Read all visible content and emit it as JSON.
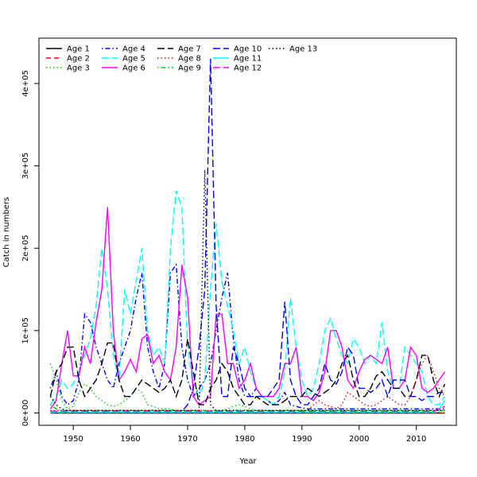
{
  "chart_data": {
    "type": "line",
    "title": "",
    "xlabel": "Year",
    "ylabel": "Catch in numbers",
    "xlim": [
      1944,
      2017
    ],
    "ylim": [
      -15000,
      455000
    ],
    "x_ticks": [
      1950,
      1960,
      1970,
      1980,
      1990,
      2000,
      2010
    ],
    "y_ticks": [
      {
        "value": 0,
        "label": "0e+00"
      },
      {
        "value": 100000,
        "label": "1e+05"
      },
      {
        "value": 200000,
        "label": "2e+05"
      },
      {
        "value": 300000,
        "label": "3e+05"
      },
      {
        "value": 400000,
        "label": "4e+05"
      }
    ],
    "grid": false,
    "legend_position": "top-left",
    "x": [
      1946,
      1947,
      1948,
      1949,
      1950,
      1951,
      1952,
      1953,
      1954,
      1955,
      1956,
      1957,
      1958,
      1959,
      1960,
      1961,
      1962,
      1963,
      1964,
      1965,
      1966,
      1967,
      1968,
      1969,
      1970,
      1971,
      1972,
      1973,
      1974,
      1975,
      1976,
      1977,
      1978,
      1979,
      1980,
      1981,
      1982,
      1983,
      1984,
      1985,
      1986,
      1987,
      1988,
      1989,
      1990,
      1991,
      1992,
      1993,
      1994,
      1995,
      1996,
      1997,
      1998,
      1999,
      2000,
      2001,
      2002,
      2003,
      2004,
      2005,
      2006,
      2007,
      2008,
      2009,
      2010,
      2011,
      2012,
      2013,
      2014,
      2015
    ],
    "series": [
      {
        "name": "Age 1",
        "color": "#000000",
        "dash": "solid",
        "values": [
          0,
          0,
          0,
          0,
          0,
          0,
          0,
          0,
          0,
          0,
          0,
          0,
          0,
          0,
          0,
          0,
          0,
          0,
          0,
          0,
          0,
          0,
          0,
          0,
          0,
          0,
          0,
          0,
          0,
          0,
          0,
          0,
          0,
          0,
          0,
          0,
          0,
          0,
          0,
          0,
          0,
          0,
          0,
          0,
          0,
          0,
          0,
          0,
          0,
          0,
          0,
          0,
          0,
          0,
          0,
          0,
          0,
          0,
          0,
          0,
          0,
          0,
          0,
          0,
          0,
          0,
          0,
          0,
          0,
          0
        ]
      },
      {
        "name": "Age 2",
        "color": "#ff0000",
        "dash": "dash",
        "values": [
          0,
          0,
          0,
          0,
          0,
          0,
          0,
          0,
          0,
          0,
          0,
          0,
          0,
          0,
          0,
          0,
          0,
          0,
          0,
          0,
          0,
          0,
          0,
          0,
          0,
          0,
          0,
          0,
          0,
          0,
          0,
          0,
          0,
          0,
          0,
          0,
          0,
          0,
          0,
          0,
          0,
          0,
          0,
          0,
          0,
          0,
          0,
          0,
          0,
          0,
          0,
          0,
          0,
          0,
          0,
          0,
          0,
          0,
          0,
          0,
          0,
          0,
          0,
          0,
          0,
          0,
          0,
          0,
          0,
          0
        ]
      },
      {
        "name": "Age 3",
        "color": "#00cd00",
        "dash": "dot",
        "values": [
          60000,
          40000,
          15000,
          5000,
          8000,
          25000,
          35000,
          30000,
          20000,
          15000,
          10000,
          8000,
          10000,
          15000,
          20000,
          30000,
          25000,
          10000,
          8000,
          5000,
          5000,
          5000,
          3000,
          3000,
          3000,
          3000,
          2000,
          2000,
          2000,
          2000,
          3000,
          5000,
          8000,
          10000,
          8000,
          5000,
          3000,
          3000,
          3000,
          3000,
          3000,
          3000,
          3000,
          3000,
          3000,
          3000,
          3000,
          3000,
          3000,
          3000,
          3000,
          3000,
          3000,
          3000,
          3000,
          3000,
          3000,
          3000,
          3000,
          3000,
          3000,
          3000,
          3000,
          3000,
          3000,
          3000,
          3000,
          3000,
          3000,
          3000
        ]
      },
      {
        "name": "Age 4",
        "color": "#0000ff",
        "dash": "dotdash",
        "values": [
          30000,
          50000,
          20000,
          10000,
          15000,
          40000,
          120000,
          110000,
          80000,
          60000,
          40000,
          30000,
          60000,
          80000,
          100000,
          140000,
          170000,
          80000,
          50000,
          30000,
          60000,
          170000,
          180000,
          80000,
          40000,
          20000,
          30000,
          40000,
          60000,
          100000,
          140000,
          170000,
          90000,
          40000,
          20000,
          20000,
          30000,
          20000,
          15000,
          10000,
          15000,
          25000,
          10000,
          8000,
          6000,
          5000,
          5000,
          5000,
          5000,
          5000,
          5000,
          5000,
          5000,
          5000,
          5000,
          5000,
          5000,
          5000,
          5000,
          5000,
          5000,
          5000,
          5000,
          5000,
          5000,
          5000,
          5000,
          5000,
          5000,
          5000
        ]
      },
      {
        "name": "Age 5",
        "color": "#00ffff",
        "dash": "longdash",
        "values": [
          10000,
          20000,
          40000,
          30000,
          35000,
          50000,
          70000,
          90000,
          130000,
          200000,
          150000,
          70000,
          40000,
          150000,
          120000,
          160000,
          200000,
          100000,
          70000,
          80000,
          60000,
          200000,
          270000,
          250000,
          80000,
          30000,
          20000,
          40000,
          150000,
          230000,
          160000,
          130000,
          100000,
          60000,
          80000,
          50000,
          30000,
          20000,
          15000,
          10000,
          20000,
          50000,
          140000,
          80000,
          40000,
          20000,
          30000,
          60000,
          100000,
          115000,
          90000,
          70000,
          60000,
          90000,
          80000,
          60000,
          70000,
          60000,
          110000,
          50000,
          30000,
          30000,
          80000,
          70000,
          60000,
          50000,
          20000,
          10000,
          10000,
          20000
        ]
      },
      {
        "name": "Age 6",
        "color": "#ff00ff",
        "dash": "solid",
        "values": [
          5000,
          15000,
          60000,
          100000,
          45000,
          45000,
          80000,
          60000,
          110000,
          150000,
          250000,
          100000,
          40000,
          50000,
          65000,
          50000,
          90000,
          95000,
          60000,
          70000,
          50000,
          40000,
          80000,
          180000,
          140000,
          20000,
          10000,
          15000,
          20000,
          120000,
          120000,
          60000,
          60000,
          30000,
          40000,
          60000,
          30000,
          20000,
          20000,
          20000,
          30000,
          60000,
          60000,
          80000,
          20000,
          20000,
          15000,
          25000,
          50000,
          100000,
          100000,
          80000,
          40000,
          30000,
          50000,
          65000,
          70000,
          65000,
          60000,
          80000,
          30000,
          30000,
          40000,
          80000,
          70000,
          30000,
          25000,
          30000,
          40000,
          50000
        ]
      },
      {
        "name": "Age 7",
        "color": "#000000",
        "dash": "longdash",
        "values": [
          20000,
          50000,
          60000,
          80000,
          80000,
          40000,
          20000,
          30000,
          40000,
          60000,
          85000,
          85000,
          40000,
          20000,
          20000,
          30000,
          40000,
          35000,
          30000,
          25000,
          30000,
          40000,
          20000,
          40000,
          90000,
          50000,
          10000,
          10000,
          30000,
          40000,
          60000,
          50000,
          30000,
          20000,
          10000,
          10000,
          20000,
          15000,
          10000,
          10000,
          10000,
          15000,
          20000,
          20000,
          20000,
          30000,
          25000,
          20000,
          25000,
          30000,
          40000,
          60000,
          70000,
          40000,
          20000,
          20000,
          30000,
          45000,
          50000,
          40000,
          30000,
          30000,
          20000,
          20000,
          40000,
          70000,
          70000,
          40000,
          20000,
          35000
        ]
      },
      {
        "name": "Age 8",
        "color": "#ff0000",
        "dash": "dot",
        "values": [
          3000,
          3000,
          3000,
          3000,
          3000,
          3000,
          3000,
          3000,
          3000,
          3000,
          3000,
          3000,
          3000,
          3000,
          3000,
          3000,
          3000,
          3000,
          3000,
          3000,
          3000,
          3000,
          3000,
          3000,
          3000,
          3000,
          3000,
          3000,
          3000,
          3000,
          3000,
          3000,
          3000,
          3000,
          3000,
          3000,
          3000,
          3000,
          3000,
          3000,
          3000,
          3000,
          3000,
          3000,
          3000,
          3000,
          10000,
          15000,
          10000,
          8000,
          5000,
          10000,
          25000,
          20000,
          15000,
          10000,
          8000,
          10000,
          15000,
          20000,
          15000,
          10000,
          10000,
          20000,
          40000,
          60000,
          70000,
          50000,
          30000,
          20000
        ]
      },
      {
        "name": "Age 9",
        "color": "#00cd00",
        "dash": "dotdash",
        "values": [
          10000,
          5000,
          3000,
          3000,
          3000,
          3000,
          3000,
          3000,
          3000,
          3000,
          3000,
          3000,
          3000,
          3000,
          3000,
          3000,
          3000,
          3000,
          3000,
          3000,
          3000,
          3000,
          3000,
          3000,
          3000,
          3000,
          3000,
          3000,
          3000,
          3000,
          3000,
          3000,
          3000,
          3000,
          3000,
          3000,
          3000,
          3000,
          3000,
          3000,
          3000,
          3000,
          3000,
          3000,
          3000,
          3000,
          3000,
          3000,
          3000,
          3000,
          3000,
          3000,
          3000,
          3000,
          3000,
          3000,
          3000,
          3000,
          3000,
          3000,
          3000,
          3000,
          3000,
          3000,
          3000,
          3000,
          3000,
          3000,
          3000,
          3000
        ]
      },
      {
        "name": "Age 10",
        "color": "#0000ff",
        "dash": "longdash",
        "values": [
          2000,
          2000,
          2000,
          2000,
          2000,
          2000,
          2000,
          2000,
          2000,
          2000,
          2000,
          2000,
          2000,
          2000,
          2000,
          2000,
          2000,
          2000,
          2000,
          2000,
          2000,
          2000,
          2000,
          2000,
          10000,
          30000,
          80000,
          150000,
          430000,
          130000,
          20000,
          20000,
          80000,
          60000,
          30000,
          20000,
          20000,
          20000,
          20000,
          30000,
          40000,
          135000,
          40000,
          20000,
          10000,
          10000,
          20000,
          30000,
          60000,
          40000,
          35000,
          50000,
          80000,
          70000,
          30000,
          30000,
          25000,
          30000,
          40000,
          20000,
          40000,
          40000,
          40000,
          20000,
          20000,
          15000,
          20000,
          20000,
          25000,
          25000
        ]
      },
      {
        "name": "Age 11",
        "color": "#00ffff",
        "dash": "solid",
        "values": [
          1000,
          1000,
          1000,
          1000,
          1000,
          1000,
          1000,
          1000,
          1000,
          1000,
          1000,
          1000,
          1000,
          1000,
          1000,
          1000,
          1000,
          1000,
          1000,
          1000,
          1000,
          1000,
          1000,
          1000,
          1000,
          1000,
          1000,
          1000,
          1000,
          1000,
          1000,
          1000,
          1000,
          1000,
          1000,
          1000,
          1000,
          1000,
          1000,
          1000,
          1000,
          1000,
          1000,
          1000,
          1000,
          1000,
          1000,
          1000,
          1000,
          1000,
          1000,
          1000,
          1000,
          1000,
          1000,
          1000,
          1000,
          1000,
          1000,
          1000,
          1000,
          1000,
          1000,
          1000,
          1000,
          1000,
          1000,
          1000,
          5000,
          15000
        ]
      },
      {
        "name": "Age 12",
        "color": "#ff00ff",
        "dash": "longdash",
        "values": [
          2000,
          2000,
          2000,
          2000,
          2000,
          2000,
          2000,
          2000,
          2000,
          2000,
          2000,
          2000,
          2000,
          2000,
          2000,
          2000,
          2000,
          2000,
          2000,
          2000,
          2000,
          2000,
          2000,
          2000,
          2000,
          2000,
          2000,
          2000,
          2000,
          2000,
          2000,
          2000,
          2000,
          2000,
          2000,
          2000,
          2000,
          2000,
          2000,
          2000,
          2000,
          2000,
          2000,
          2000,
          2000,
          2000,
          2000,
          2000,
          2000,
          2000,
          2000,
          2000,
          2000,
          2000,
          2000,
          2000,
          2000,
          2000,
          2000,
          2000,
          2000,
          2000,
          2000,
          2000,
          2000,
          2000,
          2000,
          2000,
          5000,
          8000
        ]
      },
      {
        "name": "Age 13",
        "color": "#000000",
        "dash": "dot",
        "values": [
          20000,
          10000,
          5000,
          3000,
          3000,
          3000,
          3000,
          3000,
          3000,
          3000,
          3000,
          3000,
          3000,
          3000,
          3000,
          3000,
          3000,
          3000,
          3000,
          3000,
          3000,
          3000,
          3000,
          3000,
          3000,
          3000,
          3000,
          295000,
          10000,
          3000,
          3000,
          3000,
          3000,
          3000,
          3000,
          3000,
          3000,
          3000,
          3000,
          3000,
          3000,
          3000,
          3000,
          3000,
          3000,
          3000,
          3000,
          3000,
          3000,
          3000,
          3000,
          3000,
          3000,
          3000,
          3000,
          3000,
          3000,
          3000,
          3000,
          3000,
          3000,
          3000,
          3000,
          3000,
          3000,
          3000,
          3000,
          3000,
          3000,
          3000
        ]
      }
    ]
  }
}
